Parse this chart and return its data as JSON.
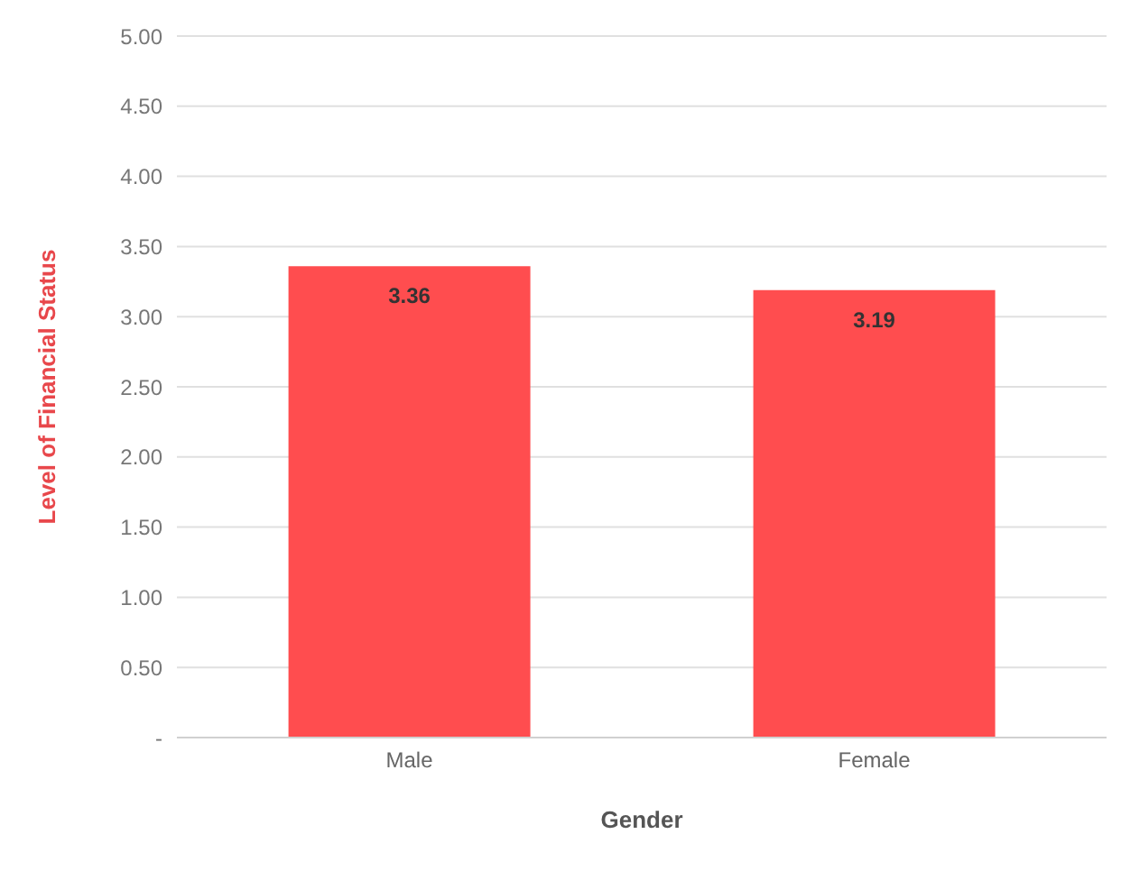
{
  "chart_data": {
    "type": "bar",
    "xlabel": "Gender",
    "ylabel": "Level of Financial Status",
    "categories": [
      "Male",
      "Female"
    ],
    "values": [
      3.36,
      3.19
    ],
    "color": "#ff4d4f",
    "ylim": [
      0,
      5
    ],
    "yticks": [
      {
        "value": 0,
        "label": "-"
      },
      {
        "value": 0.5,
        "label": "0.50"
      },
      {
        "value": 1,
        "label": "1.00"
      },
      {
        "value": 1.5,
        "label": "1.50"
      },
      {
        "value": 2,
        "label": "2.00"
      },
      {
        "value": 2.5,
        "label": "2.50"
      },
      {
        "value": 3,
        "label": "3.00"
      },
      {
        "value": 3.5,
        "label": "3.50"
      },
      {
        "value": 4,
        "label": "4.00"
      },
      {
        "value": 4.5,
        "label": "4.50"
      },
      {
        "value": 5,
        "label": "5.00"
      }
    ],
    "grid": "y",
    "data_labels": true
  }
}
